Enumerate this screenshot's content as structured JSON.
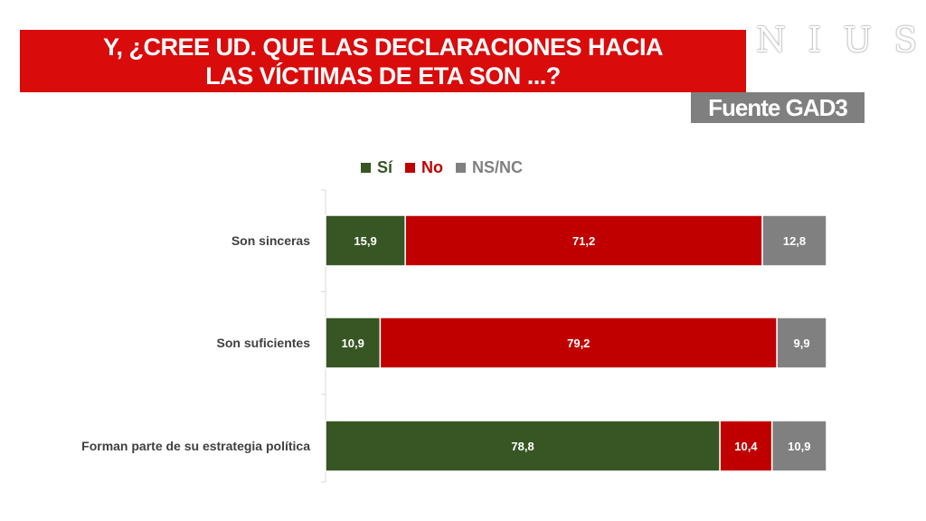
{
  "title": {
    "line1": "Y, ¿CREE UD. QUE LAS DECLARACIONES HACIA",
    "line2": "LAS VÍCTIMAS DE ETA SON ...?"
  },
  "logo_text": "NIUS",
  "source_label": "Fuente GAD3",
  "colors": {
    "si": "#375623",
    "no": "#c00000",
    "nsnc": "#808080",
    "title_bg": "#d90b0b"
  },
  "chart_data": {
    "type": "bar",
    "orientation": "horizontal",
    "stacked": true,
    "categories": [
      "Son sinceras",
      "Son suficientes",
      "Forman parte de su estrategia política"
    ],
    "series": [
      {
        "name": "Sí",
        "values": [
          15.9,
          10.9,
          78.8
        ],
        "labels": [
          "15,9",
          "10,9",
          "78,8"
        ]
      },
      {
        "name": "No",
        "values": [
          71.2,
          79.2,
          10.4
        ],
        "labels": [
          "71,2",
          "79,2",
          "10,4"
        ]
      },
      {
        "name": "NS/NC",
        "values": [
          12.8,
          9.9,
          10.9
        ],
        "labels": [
          "12,8",
          "9,9",
          "10,9"
        ]
      }
    ],
    "legend_position": "top",
    "grid": false
  }
}
